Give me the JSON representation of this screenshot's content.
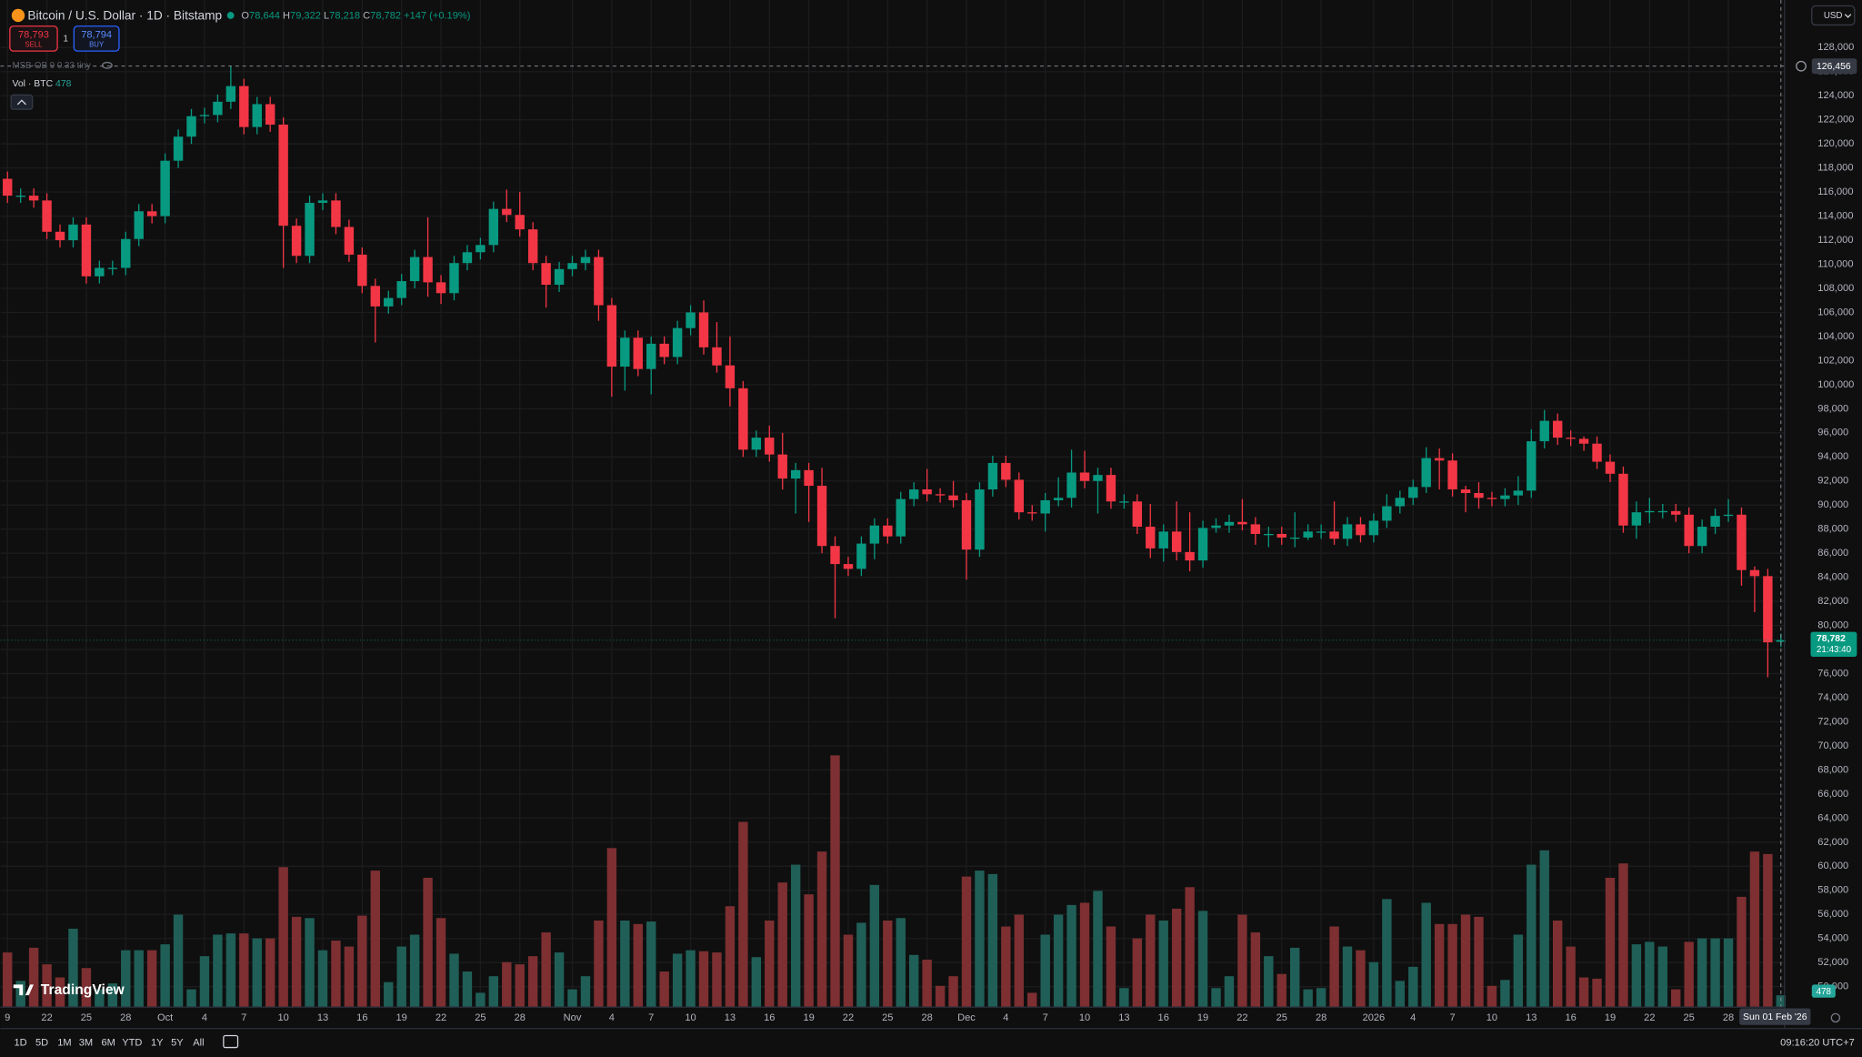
{
  "header": {
    "symbol": "Bitcoin / U.S. Dollar · 1D · Bitstamp",
    "ohlc": [
      {
        "key": "O",
        "value": "78,644"
      },
      {
        "key": "H",
        "value": "79,322"
      },
      {
        "key": "L",
        "value": "78,218"
      },
      {
        "key": "C",
        "value": "78,782"
      }
    ],
    "change": "+147 (+0.19%)",
    "sell_price": "78,793",
    "sell": "SELL",
    "qty": "1",
    "buy_price": "78,794",
    "buy": "BUY",
    "indicator": "MSB-OB 9 0.33 tiny",
    "volume_label": "Vol · BTC",
    "volume_value": "478",
    "currency": "USD"
  },
  "chart_data": {
    "type": "candlestick",
    "up_color": "#089981",
    "down_color": "#f23645",
    "volume_up_color": "#1f5f57",
    "volume_down_color": "#7d2f31",
    "grid": true,
    "categories": [
      "2025-09-19",
      "2025-09-20",
      "2025-09-21",
      "2025-09-22",
      "2025-09-23",
      "2025-09-24",
      "2025-09-25",
      "2025-09-26",
      "2025-09-27",
      "2025-09-28",
      "2025-09-29",
      "2025-09-30",
      "2025-10-01",
      "2025-10-02",
      "2025-10-03",
      "2025-10-04",
      "2025-10-05",
      "2025-10-06",
      "2025-10-07",
      "2025-10-08",
      "2025-10-09",
      "2025-10-10",
      "2025-10-11",
      "2025-10-12",
      "2025-10-13",
      "2025-10-14",
      "2025-10-15",
      "2025-10-16",
      "2025-10-17",
      "2025-10-18",
      "2025-10-19",
      "2025-10-20",
      "2025-10-21",
      "2025-10-22",
      "2025-10-23",
      "2025-10-24",
      "2025-10-25",
      "2025-10-26",
      "2025-10-27",
      "2025-10-28",
      "2025-10-29",
      "2025-10-30",
      "2025-10-31",
      "2025-11-01",
      "2025-11-02",
      "2025-11-03",
      "2025-11-04",
      "2025-11-05",
      "2025-11-06",
      "2025-11-07",
      "2025-11-08",
      "2025-11-09",
      "2025-11-10",
      "2025-11-11",
      "2025-11-12",
      "2025-11-13",
      "2025-11-14",
      "2025-11-15",
      "2025-11-16",
      "2025-11-17",
      "2025-11-18",
      "2025-11-19",
      "2025-11-20",
      "2025-11-21",
      "2025-11-22",
      "2025-11-23",
      "2025-11-24",
      "2025-11-25",
      "2025-11-26",
      "2025-11-27",
      "2025-11-28",
      "2025-11-29",
      "2025-11-30",
      "2025-12-01",
      "2025-12-02",
      "2025-12-03",
      "2025-12-04",
      "2025-12-05",
      "2025-12-06",
      "2025-12-07",
      "2025-12-08",
      "2025-12-09",
      "2025-12-10",
      "2025-12-11",
      "2025-12-12",
      "2025-12-13",
      "2025-12-14",
      "2025-12-15",
      "2025-12-16",
      "2025-12-17",
      "2025-12-18",
      "2025-12-19",
      "2025-12-20",
      "2025-12-21",
      "2025-12-22",
      "2025-12-23",
      "2025-12-24",
      "2025-12-25",
      "2025-12-26",
      "2025-12-27",
      "2025-12-28",
      "2025-12-29",
      "2025-12-30",
      "2025-12-31",
      "2026-01-01",
      "2026-01-02",
      "2026-01-03",
      "2026-01-04",
      "2026-01-05",
      "2026-01-06",
      "2026-01-07",
      "2026-01-08",
      "2026-01-09",
      "2026-01-10",
      "2026-01-11",
      "2026-01-12",
      "2026-01-13",
      "2026-01-14",
      "2026-01-15",
      "2026-01-16",
      "2026-01-17",
      "2026-01-18",
      "2026-01-19",
      "2026-01-20",
      "2026-01-21",
      "2026-01-22",
      "2026-01-23",
      "2026-01-24",
      "2026-01-25",
      "2026-01-26",
      "2026-01-27",
      "2026-01-28",
      "2026-01-29",
      "2026-01-30",
      "2026-01-31",
      "2026-02-01"
    ],
    "open": [
      117100,
      115700,
      115700,
      115300,
      112700,
      112000,
      113300,
      109000,
      109700,
      109700,
      112100,
      114400,
      114000,
      118600,
      120600,
      122300,
      122400,
      123500,
      124800,
      121400,
      123300,
      121600,
      113200,
      110700,
      115100,
      115300,
      113100,
      110800,
      108200,
      106500,
      107200,
      108600,
      110600,
      108500,
      107600,
      110100,
      111000,
      111600,
      114600,
      114100,
      112900,
      110100,
      108300,
      109600,
      110100,
      110600,
      106600,
      101500,
      103900,
      101300,
      103400,
      102300,
      104700,
      106000,
      103100,
      101600,
      99700,
      94600,
      95600,
      94200,
      92200,
      92900,
      91600,
      86600,
      85100,
      84700,
      86800,
      88300,
      87400,
      90500,
      91300,
      90900,
      90800,
      90400,
      86300,
      91300,
      93500,
      92100,
      89400,
      89300,
      90400,
      90600,
      92700,
      92000,
      92500,
      90300,
      90300,
      88200,
      86400,
      87800,
      86100,
      85400,
      88100,
      88300,
      88600,
      88400,
      87600,
      87600,
      87300,
      87300,
      87800,
      87800,
      87200,
      88400,
      87500,
      88700,
      89900,
      90600,
      91500,
      93900,
      93700,
      91300,
      91000,
      90600,
      90500,
      90800,
      91200,
      95300,
      97000,
      95600,
      95500,
      95100,
      93600,
      92600,
      88300,
      89400,
      89500,
      89500,
      89200,
      86600,
      88200,
      89100,
      89200,
      84600,
      84100,
      78644
    ],
    "high": [
      117700,
      116300,
      116300,
      115900,
      113300,
      113900,
      113900,
      110300,
      110300,
      112700,
      115000,
      115000,
      119200,
      121200,
      122900,
      123000,
      124100,
      126456,
      125400,
      123900,
      123900,
      122200,
      113800,
      115700,
      115900,
      115900,
      113700,
      111400,
      108800,
      107800,
      109200,
      111200,
      113900,
      109100,
      110700,
      111600,
      112200,
      115200,
      116200,
      116000,
      113500,
      110700,
      110200,
      110700,
      111200,
      111200,
      107200,
      104500,
      104500,
      104000,
      104000,
      105300,
      106600,
      107000,
      105200,
      104000,
      100300,
      96200,
      96600,
      96000,
      93500,
      93500,
      93100,
      87400,
      85700,
      87400,
      88900,
      88900,
      91100,
      91900,
      93000,
      91400,
      92000,
      91000,
      91900,
      94100,
      94100,
      92700,
      90000,
      91000,
      92300,
      94600,
      94500,
      93100,
      93100,
      90900,
      90900,
      90100,
      88400,
      90300,
      89400,
      88700,
      88900,
      89200,
      90500,
      89000,
      88200,
      88200,
      89400,
      88400,
      88400,
      90300,
      89000,
      89000,
      89300,
      90900,
      91200,
      92100,
      94800,
      94700,
      94300,
      91600,
      91900,
      91100,
      91400,
      92400,
      96300,
      97900,
      97600,
      96200,
      95700,
      95700,
      94200,
      93200,
      90300,
      90600,
      90100,
      90100,
      89800,
      88800,
      89700,
      90500,
      89800,
      84900,
      84700,
      79322
    ],
    "low": [
      115100,
      115100,
      114700,
      112100,
      111400,
      111400,
      108400,
      108400,
      109100,
      109100,
      111500,
      113400,
      113400,
      118000,
      120000,
      121700,
      121800,
      122900,
      120800,
      120800,
      121000,
      109700,
      110100,
      110100,
      114500,
      112500,
      110200,
      107600,
      103500,
      105900,
      106600,
      108000,
      107300,
      106700,
      107000,
      109500,
      110400,
      111000,
      113500,
      112300,
      109500,
      106400,
      107700,
      109000,
      109500,
      105300,
      99000,
      99500,
      100700,
      99200,
      101700,
      101700,
      104100,
      102500,
      101000,
      98200,
      94000,
      94000,
      93600,
      91300,
      89300,
      88600,
      86000,
      80600,
      84100,
      84100,
      85500,
      86800,
      86800,
      89900,
      90300,
      90200,
      89800,
      83800,
      85700,
      90700,
      91500,
      88800,
      88700,
      87800,
      89900,
      89800,
      91400,
      89300,
      89700,
      89700,
      87600,
      85600,
      85300,
      85400,
      84500,
      84800,
      87700,
      87700,
      87900,
      86700,
      86500,
      86700,
      86500,
      87100,
      87200,
      86700,
      86600,
      86900,
      86900,
      88100,
      89300,
      90000,
      91000,
      91300,
      90700,
      89400,
      89700,
      89900,
      89900,
      90000,
      90600,
      94700,
      95000,
      94900,
      94500,
      93000,
      91900,
      87700,
      87200,
      88500,
      88900,
      88600,
      86000,
      86000,
      87600,
      88600,
      83300,
      81100,
      75700,
      78218
    ],
    "close": [
      115700,
      115700,
      115300,
      112700,
      112000,
      113300,
      109000,
      109700,
      109700,
      112100,
      114400,
      114000,
      118600,
      120600,
      122300,
      122400,
      123500,
      124800,
      121400,
      123300,
      121600,
      113200,
      110700,
      115100,
      115300,
      113100,
      110800,
      108200,
      106500,
      107200,
      108600,
      110600,
      108500,
      107600,
      110100,
      111000,
      111600,
      114600,
      114100,
      112900,
      110100,
      108300,
      109600,
      110100,
      110600,
      106600,
      101500,
      103900,
      101300,
      103400,
      102300,
      104700,
      106000,
      103100,
      101600,
      99700,
      94600,
      95600,
      94200,
      92200,
      92900,
      91600,
      86600,
      85100,
      84700,
      86800,
      88300,
      87400,
      90500,
      91300,
      90900,
      90800,
      90400,
      86300,
      91300,
      93500,
      92100,
      89400,
      89300,
      90400,
      90600,
      92700,
      92000,
      92500,
      90300,
      90300,
      88200,
      86400,
      87800,
      86100,
      85400,
      88100,
      88300,
      88600,
      88400,
      87600,
      87600,
      87300,
      87300,
      87800,
      87800,
      87200,
      88400,
      87500,
      88700,
      89900,
      90600,
      91500,
      93900,
      93700,
      91300,
      91000,
      90600,
      90500,
      90800,
      91200,
      95300,
      97000,
      95600,
      95500,
      95100,
      93600,
      92600,
      88300,
      89400,
      89500,
      89500,
      89200,
      86600,
      88200,
      89100,
      89200,
      84600,
      84100,
      78600,
      78782
    ],
    "volume": [
      2210,
      1060,
      2400,
      1730,
      1200,
      3170,
      1580,
      720,
      960,
      2300,
      2300,
      2300,
      2540,
      3740,
      720,
      2060,
      2930,
      2980,
      2980,
      2780,
      2780,
      5660,
      3650,
      3600,
      2300,
      2690,
      2450,
      3700,
      5520,
      1010,
      2450,
      2930,
      5230,
      3600,
      2160,
      1440,
      580,
      1250,
      1820,
      1730,
      2060,
      3020,
      2210,
      720,
      1250,
      3500,
      6430,
      3500,
      3360,
      3460,
      1440,
      2160,
      2300,
      2260,
      2210,
      4080,
      7490,
      2020,
      3500,
      5040,
      5760,
      4560,
      6290,
      10180,
      2930,
      3410,
      4940,
      3500,
      3600,
      2110,
      1920,
      860,
      1250,
      5280,
      5520,
      5380,
      3260,
      3740,
      580,
      2930,
      3740,
      4130,
      4220,
      4700,
      3260,
      770,
      2780,
      3740,
      3500,
      3980,
      4850,
      3890,
      770,
      1250,
      3740,
      3020,
      2060,
      1340,
      2400,
      720,
      770,
      3260,
      2450,
      2300,
      1820,
      4370,
      1060,
      1630,
      4220,
      3360,
      3360,
      3740,
      3650,
      860,
      1100,
      2930,
      5760,
      6340,
      3500,
      2450,
      1200,
      1150,
      5230,
      5810,
      2540,
      2640,
      2450,
      720,
      2640,
      2780,
      2780,
      2780,
      4460,
      6290,
      6190,
      478
    ],
    "ylim": [
      48300,
      131950
    ],
    "yticks": [
      {
        "value": 50000,
        "label": "50,000"
      },
      {
        "value": 52000,
        "label": "52,000"
      },
      {
        "value": 54000,
        "label": "54,000"
      },
      {
        "value": 56000,
        "label": "56,000"
      },
      {
        "value": 58000,
        "label": "58,000"
      },
      {
        "value": 60000,
        "label": "60,000"
      },
      {
        "value": 62000,
        "label": "62,000"
      },
      {
        "value": 64000,
        "label": "64,000"
      },
      {
        "value": 66000,
        "label": "66,000"
      },
      {
        "value": 68000,
        "label": "68,000"
      },
      {
        "value": 70000,
        "label": "70,000"
      },
      {
        "value": 72000,
        "label": "72,000"
      },
      {
        "value": 74000,
        "label": "74,000"
      },
      {
        "value": 76000,
        "label": "76,000"
      },
      {
        "value": 78000,
        "label": "78,000"
      },
      {
        "value": 80000,
        "label": "80,000"
      },
      {
        "value": 82000,
        "label": "82,000"
      },
      {
        "value": 84000,
        "label": "84,000"
      },
      {
        "value": 86000,
        "label": "86,000"
      },
      {
        "value": 88000,
        "label": "88,000"
      },
      {
        "value": 90000,
        "label": "90,000"
      },
      {
        "value": 92000,
        "label": "92,000"
      },
      {
        "value": 94000,
        "label": "94,000"
      },
      {
        "value": 96000,
        "label": "96,000"
      },
      {
        "value": 98000,
        "label": "98,000"
      },
      {
        "value": 100000,
        "label": "100,000"
      },
      {
        "value": 102000,
        "label": "102,000"
      },
      {
        "value": 104000,
        "label": "104,000"
      },
      {
        "value": 106000,
        "label": "106,000"
      },
      {
        "value": 108000,
        "label": "108,000"
      },
      {
        "value": 110000,
        "label": "110,000"
      },
      {
        "value": 112000,
        "label": "112,000"
      },
      {
        "value": 114000,
        "label": "114,000"
      },
      {
        "value": 116000,
        "label": "116,000"
      },
      {
        "value": 118000,
        "label": "118,000"
      },
      {
        "value": 120000,
        "label": "120,000"
      },
      {
        "value": 122000,
        "label": "122,000"
      },
      {
        "value": 124000,
        "label": "124,000"
      },
      {
        "value": 126000,
        "label": "126,000"
      },
      {
        "value": 128000,
        "label": "128,000"
      }
    ],
    "xticks": [
      {
        "value": "2025-09-19",
        "label": "9"
      },
      {
        "value": "2025-09-22",
        "label": "22"
      },
      {
        "value": "2025-09-25",
        "label": "25"
      },
      {
        "value": "2025-09-28",
        "label": "28"
      },
      {
        "value": "2025-10-01",
        "label": "Oct"
      },
      {
        "value": "2025-10-04",
        "label": "4"
      },
      {
        "value": "2025-10-07",
        "label": "7"
      },
      {
        "value": "2025-10-10",
        "label": "10"
      },
      {
        "value": "2025-10-13",
        "label": "13"
      },
      {
        "value": "2025-10-16",
        "label": "16"
      },
      {
        "value": "2025-10-19",
        "label": "19"
      },
      {
        "value": "2025-10-22",
        "label": "22"
      },
      {
        "value": "2025-10-25",
        "label": "25"
      },
      {
        "value": "2025-10-28",
        "label": "28"
      },
      {
        "value": "2025-11-01",
        "label": "Nov"
      },
      {
        "value": "2025-11-04",
        "label": "4"
      },
      {
        "value": "2025-11-07",
        "label": "7"
      },
      {
        "value": "2025-11-10",
        "label": "10"
      },
      {
        "value": "2025-11-13",
        "label": "13"
      },
      {
        "value": "2025-11-16",
        "label": "16"
      },
      {
        "value": "2025-11-19",
        "label": "19"
      },
      {
        "value": "2025-11-22",
        "label": "22"
      },
      {
        "value": "2025-11-25",
        "label": "25"
      },
      {
        "value": "2025-11-28",
        "label": "28"
      },
      {
        "value": "2025-12-01",
        "label": "Dec"
      },
      {
        "value": "2025-12-04",
        "label": "4"
      },
      {
        "value": "2025-12-07",
        "label": "7"
      },
      {
        "value": "2025-12-10",
        "label": "10"
      },
      {
        "value": "2025-12-13",
        "label": "13"
      },
      {
        "value": "2025-12-16",
        "label": "16"
      },
      {
        "value": "2025-12-19",
        "label": "19"
      },
      {
        "value": "2025-12-22",
        "label": "22"
      },
      {
        "value": "2025-12-25",
        "label": "25"
      },
      {
        "value": "2025-12-28",
        "label": "28"
      },
      {
        "value": "2026-01-01",
        "label": "2026"
      },
      {
        "value": "2026-01-04",
        "label": "4"
      },
      {
        "value": "2026-01-07",
        "label": "7"
      },
      {
        "value": "2026-01-10",
        "label": "10"
      },
      {
        "value": "2026-01-13",
        "label": "13"
      },
      {
        "value": "2026-01-16",
        "label": "16"
      },
      {
        "value": "2026-01-19",
        "label": "19"
      },
      {
        "value": "2026-01-22",
        "label": "22"
      },
      {
        "value": "2026-01-25",
        "label": "25"
      },
      {
        "value": "2026-01-28",
        "label": "28"
      }
    ],
    "last_price": {
      "value": 78782,
      "label": "78,782",
      "countdown": "21:43:40"
    },
    "crosshair": {
      "value": 126456,
      "label": "126,456",
      "date": "2026-02-01",
      "date_label": "Sun 01 Feb '26"
    }
  },
  "toolbar": {
    "ranges": [
      "1D",
      "5D",
      "1M",
      "3M",
      "6M",
      "YTD",
      "1Y",
      "5Y",
      "All"
    ],
    "clock": "09:16:20 UTC+7",
    "logo": "TradingView"
  }
}
